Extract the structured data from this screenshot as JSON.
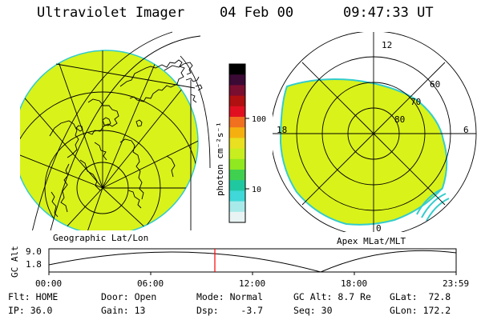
{
  "header": {
    "instrument": "Ultraviolet Imager",
    "date": "04 Feb 00",
    "time": "09:47:33 UT"
  },
  "colors": {
    "map_fill": "#d9f21a",
    "map_edge": "#33cccc",
    "lines": "#000000",
    "cursor": "#ff0000"
  },
  "geo_panel": {
    "label": "Geographic Lat/Lon"
  },
  "polar_panel": {
    "label": "Apex MLat/MLT",
    "mlt_labels": {
      "top": "12",
      "left": "18",
      "right": "6",
      "bottom": "0"
    },
    "lat_labels": [
      "60",
      "70",
      "80"
    ]
  },
  "colorbar": {
    "unit_label": "photon cm⁻²s⁻¹",
    "ticks": [
      "100",
      "10"
    ],
    "colors": [
      "#000000",
      "#3a0a35",
      "#7a0e30",
      "#b01010",
      "#e01020",
      "#f07020",
      "#f5b010",
      "#e8e020",
      "#c8ee20",
      "#90e820",
      "#40d050",
      "#20c8a0",
      "#40d8d8",
      "#a8eaea",
      "#e8f4f4"
    ]
  },
  "altitude_plot": {
    "ylabel": "GC Alt",
    "yticks": [
      "9.0",
      "1.8"
    ],
    "xticks": [
      "00:00",
      "06:00",
      "12:00",
      "18:00",
      "23:59"
    ]
  },
  "status": {
    "row1": [
      {
        "label": "Flt:",
        "value": "HOME"
      },
      {
        "label": "Door:",
        "value": "Open"
      },
      {
        "label": "Mode:",
        "value": "Normal"
      },
      {
        "label": "GC Alt:",
        "value": "8.7 Re"
      },
      {
        "label": "GLat:",
        "value": "72.8"
      }
    ],
    "row2": [
      {
        "label": "IP:",
        "value": "36.0"
      },
      {
        "label": "Gain:",
        "value": "13"
      },
      {
        "label": "Dsp:",
        "value": "-3.7"
      },
      {
        "label": "Seq:",
        "value": "30"
      },
      {
        "label": "GLon:",
        "value": "172.2"
      }
    ]
  }
}
